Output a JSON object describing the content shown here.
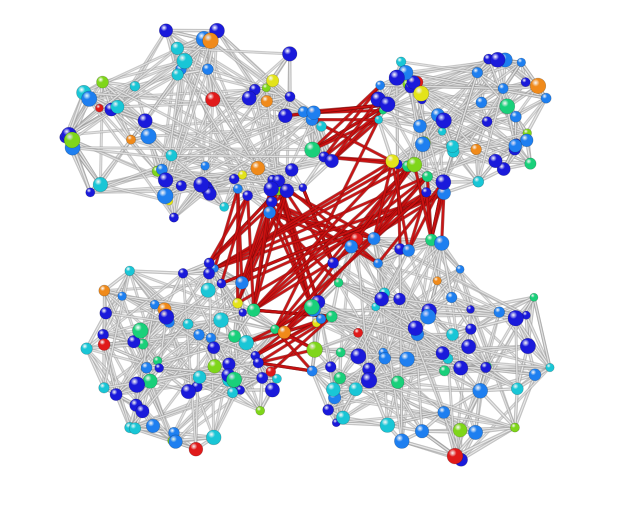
{
  "graph": {
    "background": "#ffffff",
    "edge_colors": {
      "intra_cluster": "#c8c8c8",
      "inter_cluster": "#cc1111"
    },
    "node_color_scale": [
      "#1a1adb",
      "#1e7ff0",
      "#19c6d6",
      "#19d07a",
      "#7fd61a",
      "#e3e31a",
      "#f08a1a",
      "#e01a1a"
    ],
    "node_color_names": [
      "blue",
      "azure",
      "cyan",
      "green",
      "lime",
      "yellow",
      "orange",
      "red"
    ],
    "cluster_count": 4,
    "clusters": [
      {
        "name": "top-left-cluster",
        "node_count": 70
      },
      {
        "name": "top-right-cluster",
        "node_count": 55
      },
      {
        "name": "bottom-left-cluster",
        "node_count": 70
      },
      {
        "name": "bottom-right-cluster",
        "node_count": 75
      }
    ],
    "bridge": {
      "name": "central-bridge",
      "style": "dense-red-edges"
    }
  }
}
